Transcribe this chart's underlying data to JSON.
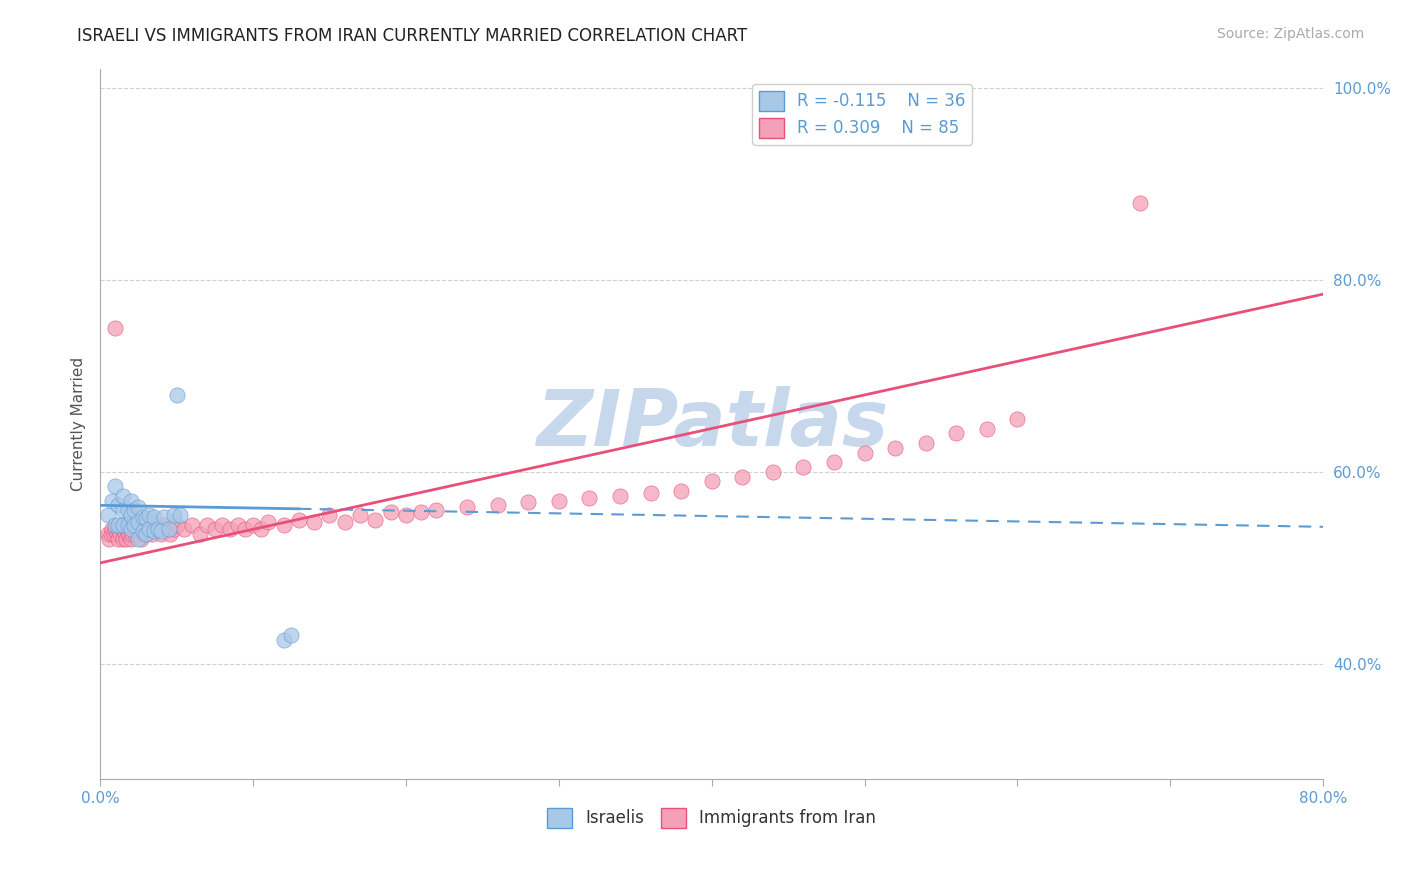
{
  "title": "ISRAELI VS IMMIGRANTS FROM IRAN CURRENTLY MARRIED CORRELATION CHART",
  "source": "Source: ZipAtlas.com",
  "ylabel": "Currently Married",
  "xlabel": "",
  "xlim": [
    0.0,
    0.8
  ],
  "ylim": [
    0.28,
    1.02
  ],
  "yticks": [
    0.4,
    0.6,
    0.8,
    1.0
  ],
  "ytick_labels": [
    "40.0%",
    "60.0%",
    "80.0%",
    "100.0%"
  ],
  "xticks": [
    0.0,
    0.1,
    0.2,
    0.3,
    0.4,
    0.5,
    0.6,
    0.7,
    0.8
  ],
  "xtick_labels": [
    "0.0%",
    "",
    "",
    "",
    "",
    "",
    "",
    "",
    "80.0%"
  ],
  "legend_R1": "R = -0.115",
  "legend_N1": "N = 36",
  "legend_R2": "R = 0.309",
  "legend_N2": "N = 85",
  "color_israeli": "#A8C8E8",
  "color_iran": "#F4A0B8",
  "color_trend_israeli": "#5B9BD5",
  "color_trend_iran": "#E8507A",
  "background_color": "#FFFFFF",
  "watermark_text": "ZIPatlas",
  "watermark_color": "#C8D8EC",
  "israelis_x": [
    0.005,
    0.008,
    0.01,
    0.01,
    0.012,
    0.012,
    0.015,
    0.015,
    0.015,
    0.018,
    0.018,
    0.02,
    0.02,
    0.02,
    0.022,
    0.022,
    0.025,
    0.025,
    0.025,
    0.028,
    0.028,
    0.03,
    0.03,
    0.032,
    0.032,
    0.035,
    0.035,
    0.038,
    0.04,
    0.042,
    0.045,
    0.048,
    0.05,
    0.052,
    0.12,
    0.125
  ],
  "israelis_y": [
    0.555,
    0.57,
    0.545,
    0.585,
    0.545,
    0.565,
    0.545,
    0.56,
    0.575,
    0.545,
    0.56,
    0.54,
    0.555,
    0.57,
    0.545,
    0.56,
    0.53,
    0.548,
    0.563,
    0.538,
    0.553,
    0.535,
    0.552,
    0.54,
    0.555,
    0.538,
    0.553,
    0.54,
    0.538,
    0.553,
    0.54,
    0.555,
    0.68,
    0.555,
    0.425,
    0.43
  ],
  "iran_x": [
    0.005,
    0.006,
    0.007,
    0.008,
    0.009,
    0.01,
    0.01,
    0.011,
    0.012,
    0.012,
    0.013,
    0.014,
    0.015,
    0.015,
    0.016,
    0.017,
    0.018,
    0.018,
    0.019,
    0.02,
    0.02,
    0.021,
    0.022,
    0.023,
    0.024,
    0.025,
    0.026,
    0.027,
    0.028,
    0.029,
    0.03,
    0.032,
    0.034,
    0.035,
    0.036,
    0.038,
    0.04,
    0.042,
    0.044,
    0.046,
    0.048,
    0.05,
    0.055,
    0.06,
    0.065,
    0.07,
    0.075,
    0.08,
    0.085,
    0.09,
    0.095,
    0.1,
    0.105,
    0.11,
    0.12,
    0.13,
    0.14,
    0.15,
    0.16,
    0.17,
    0.18,
    0.19,
    0.2,
    0.21,
    0.22,
    0.24,
    0.26,
    0.28,
    0.3,
    0.32,
    0.34,
    0.36,
    0.38,
    0.4,
    0.42,
    0.44,
    0.46,
    0.48,
    0.5,
    0.52,
    0.54,
    0.56,
    0.58,
    0.6,
    0.68
  ],
  "iran_y": [
    0.535,
    0.53,
    0.535,
    0.54,
    0.535,
    0.54,
    0.75,
    0.535,
    0.53,
    0.54,
    0.535,
    0.54,
    0.53,
    0.545,
    0.535,
    0.53,
    0.535,
    0.545,
    0.535,
    0.53,
    0.54,
    0.535,
    0.54,
    0.535,
    0.545,
    0.535,
    0.54,
    0.53,
    0.54,
    0.535,
    0.535,
    0.54,
    0.535,
    0.54,
    0.545,
    0.54,
    0.535,
    0.545,
    0.54,
    0.535,
    0.54,
    0.545,
    0.54,
    0.545,
    0.535,
    0.545,
    0.54,
    0.545,
    0.54,
    0.545,
    0.54,
    0.545,
    0.54,
    0.548,
    0.545,
    0.55,
    0.548,
    0.555,
    0.548,
    0.555,
    0.55,
    0.558,
    0.555,
    0.558,
    0.56,
    0.563,
    0.565,
    0.568,
    0.57,
    0.573,
    0.575,
    0.578,
    0.58,
    0.59,
    0.595,
    0.6,
    0.605,
    0.61,
    0.62,
    0.625,
    0.63,
    0.64,
    0.645,
    0.655,
    0.88
  ],
  "trend_israeli_x0": 0.0,
  "trend_israeli_y0": 0.565,
  "trend_israeli_x_solid_end": 0.13,
  "trend_israeli_x_dash_end": 0.8,
  "trend_israeli_slope": -0.028,
  "trend_iran_x0": 0.0,
  "trend_iran_y0": 0.505,
  "trend_iran_x1": 0.8,
  "trend_iran_y1": 0.785,
  "trend_iran_slope": 0.35
}
